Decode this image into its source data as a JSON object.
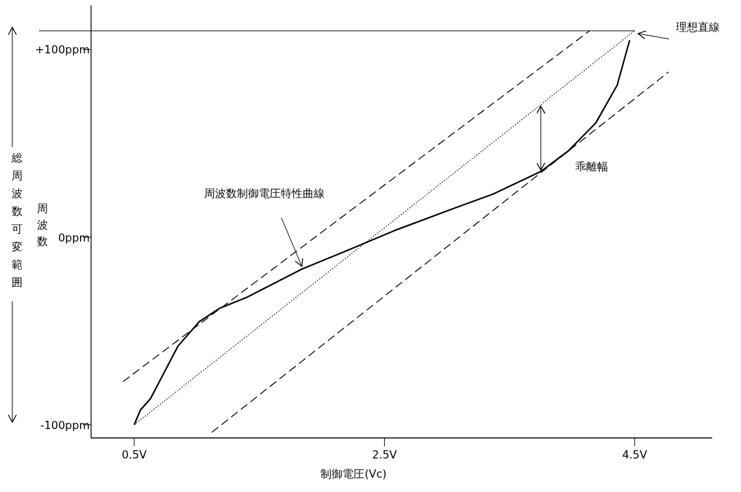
{
  "chart_data": {
    "type": "line",
    "xlabel": "制御電圧(Vc)",
    "ylabel": "周波数",
    "xlim": [
      0.155,
      5.12
    ],
    "ylim": [
      -107,
      110
    ],
    "xticks": [
      {
        "value": 0.5,
        "label": "0.5V"
      },
      {
        "value": 2.5,
        "label": "2.5V"
      },
      {
        "value": 4.5,
        "label": "4.5V"
      }
    ],
    "yticks": [
      {
        "value": -100,
        "label": "-100ppm"
      },
      {
        "value": 0,
        "label": "0ppm"
      },
      {
        "value": 100,
        "label": "+100ppm"
      }
    ],
    "grid": false,
    "marker": "none",
    "series": [
      {
        "color": "#000000",
        "line_style": "solid",
        "x": [
          0.5,
          0.55,
          0.63,
          0.74,
          0.85,
          1.02,
          1.18,
          1.4,
          1.84,
          2.17,
          2.6,
          3.04,
          3.37,
          3.75,
          3.97,
          4.19,
          4.36,
          4.46
        ],
        "values": [
          -100,
          -92,
          -86,
          -72,
          -58,
          -45,
          -38,
          -32,
          -17,
          -8,
          4,
          15,
          23,
          35,
          46,
          61,
          81,
          105
        ]
      },
      {
        "color": "#000000",
        "line_style": "dotted",
        "x": [
          0.5,
          4.5
        ],
        "values": [
          -100,
          110
        ]
      },
      {
        "color": "#000000",
        "line_style": "dashed",
        "x": [
          0.41,
          4.14
        ],
        "values": [
          -77,
          110
        ]
      },
      {
        "color": "#000000",
        "line_style": "dashed",
        "x": [
          1.12,
          4.77
        ],
        "values": [
          -104,
          88
        ]
      }
    ],
    "ref_lines": [
      {
        "axis": "y",
        "value": 110,
        "color": "#000000"
      }
    ],
    "annotations": [
      {
        "text": "理想直線",
        "x": 4.5,
        "y": 110
      },
      "周波数制御電圧特性曲線",
      "乖離幅",
      "総周波数可変範囲"
    ]
  }
}
